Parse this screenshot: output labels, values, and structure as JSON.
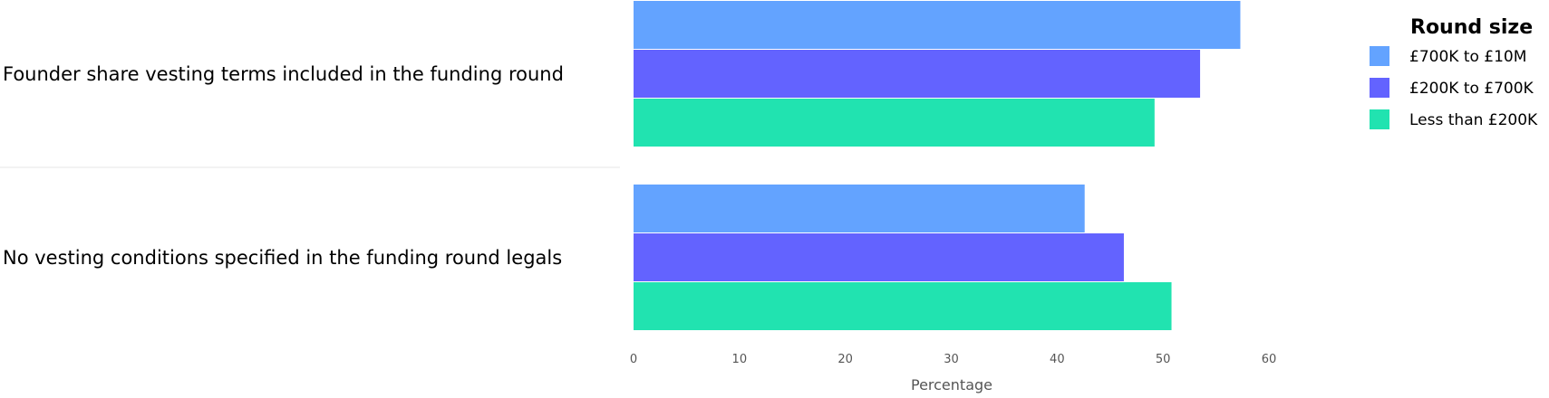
{
  "chart_data": {
    "type": "bar",
    "orientation": "horizontal",
    "categories": [
      "Founder share vesting terms included in the funding round",
      "No vesting conditions specified in the funding round legals"
    ],
    "series": [
      {
        "name": "£700K to £10M",
        "color": "#63a3ff",
        "values": [
          57.3,
          42.6
        ]
      },
      {
        "name": "£200K to £700K",
        "color": "#6363ff",
        "values": [
          53.5,
          46.3
        ]
      },
      {
        "name": "Less than £200K",
        "color": "#21e3b0",
        "values": [
          49.2,
          50.8
        ]
      }
    ],
    "xlabel": "Percentage",
    "xlim": [
      0,
      60
    ],
    "xticks": [
      0,
      10,
      20,
      30,
      40,
      50,
      60
    ],
    "legend": {
      "title": "Round size",
      "placement": "right"
    },
    "grid": false
  }
}
